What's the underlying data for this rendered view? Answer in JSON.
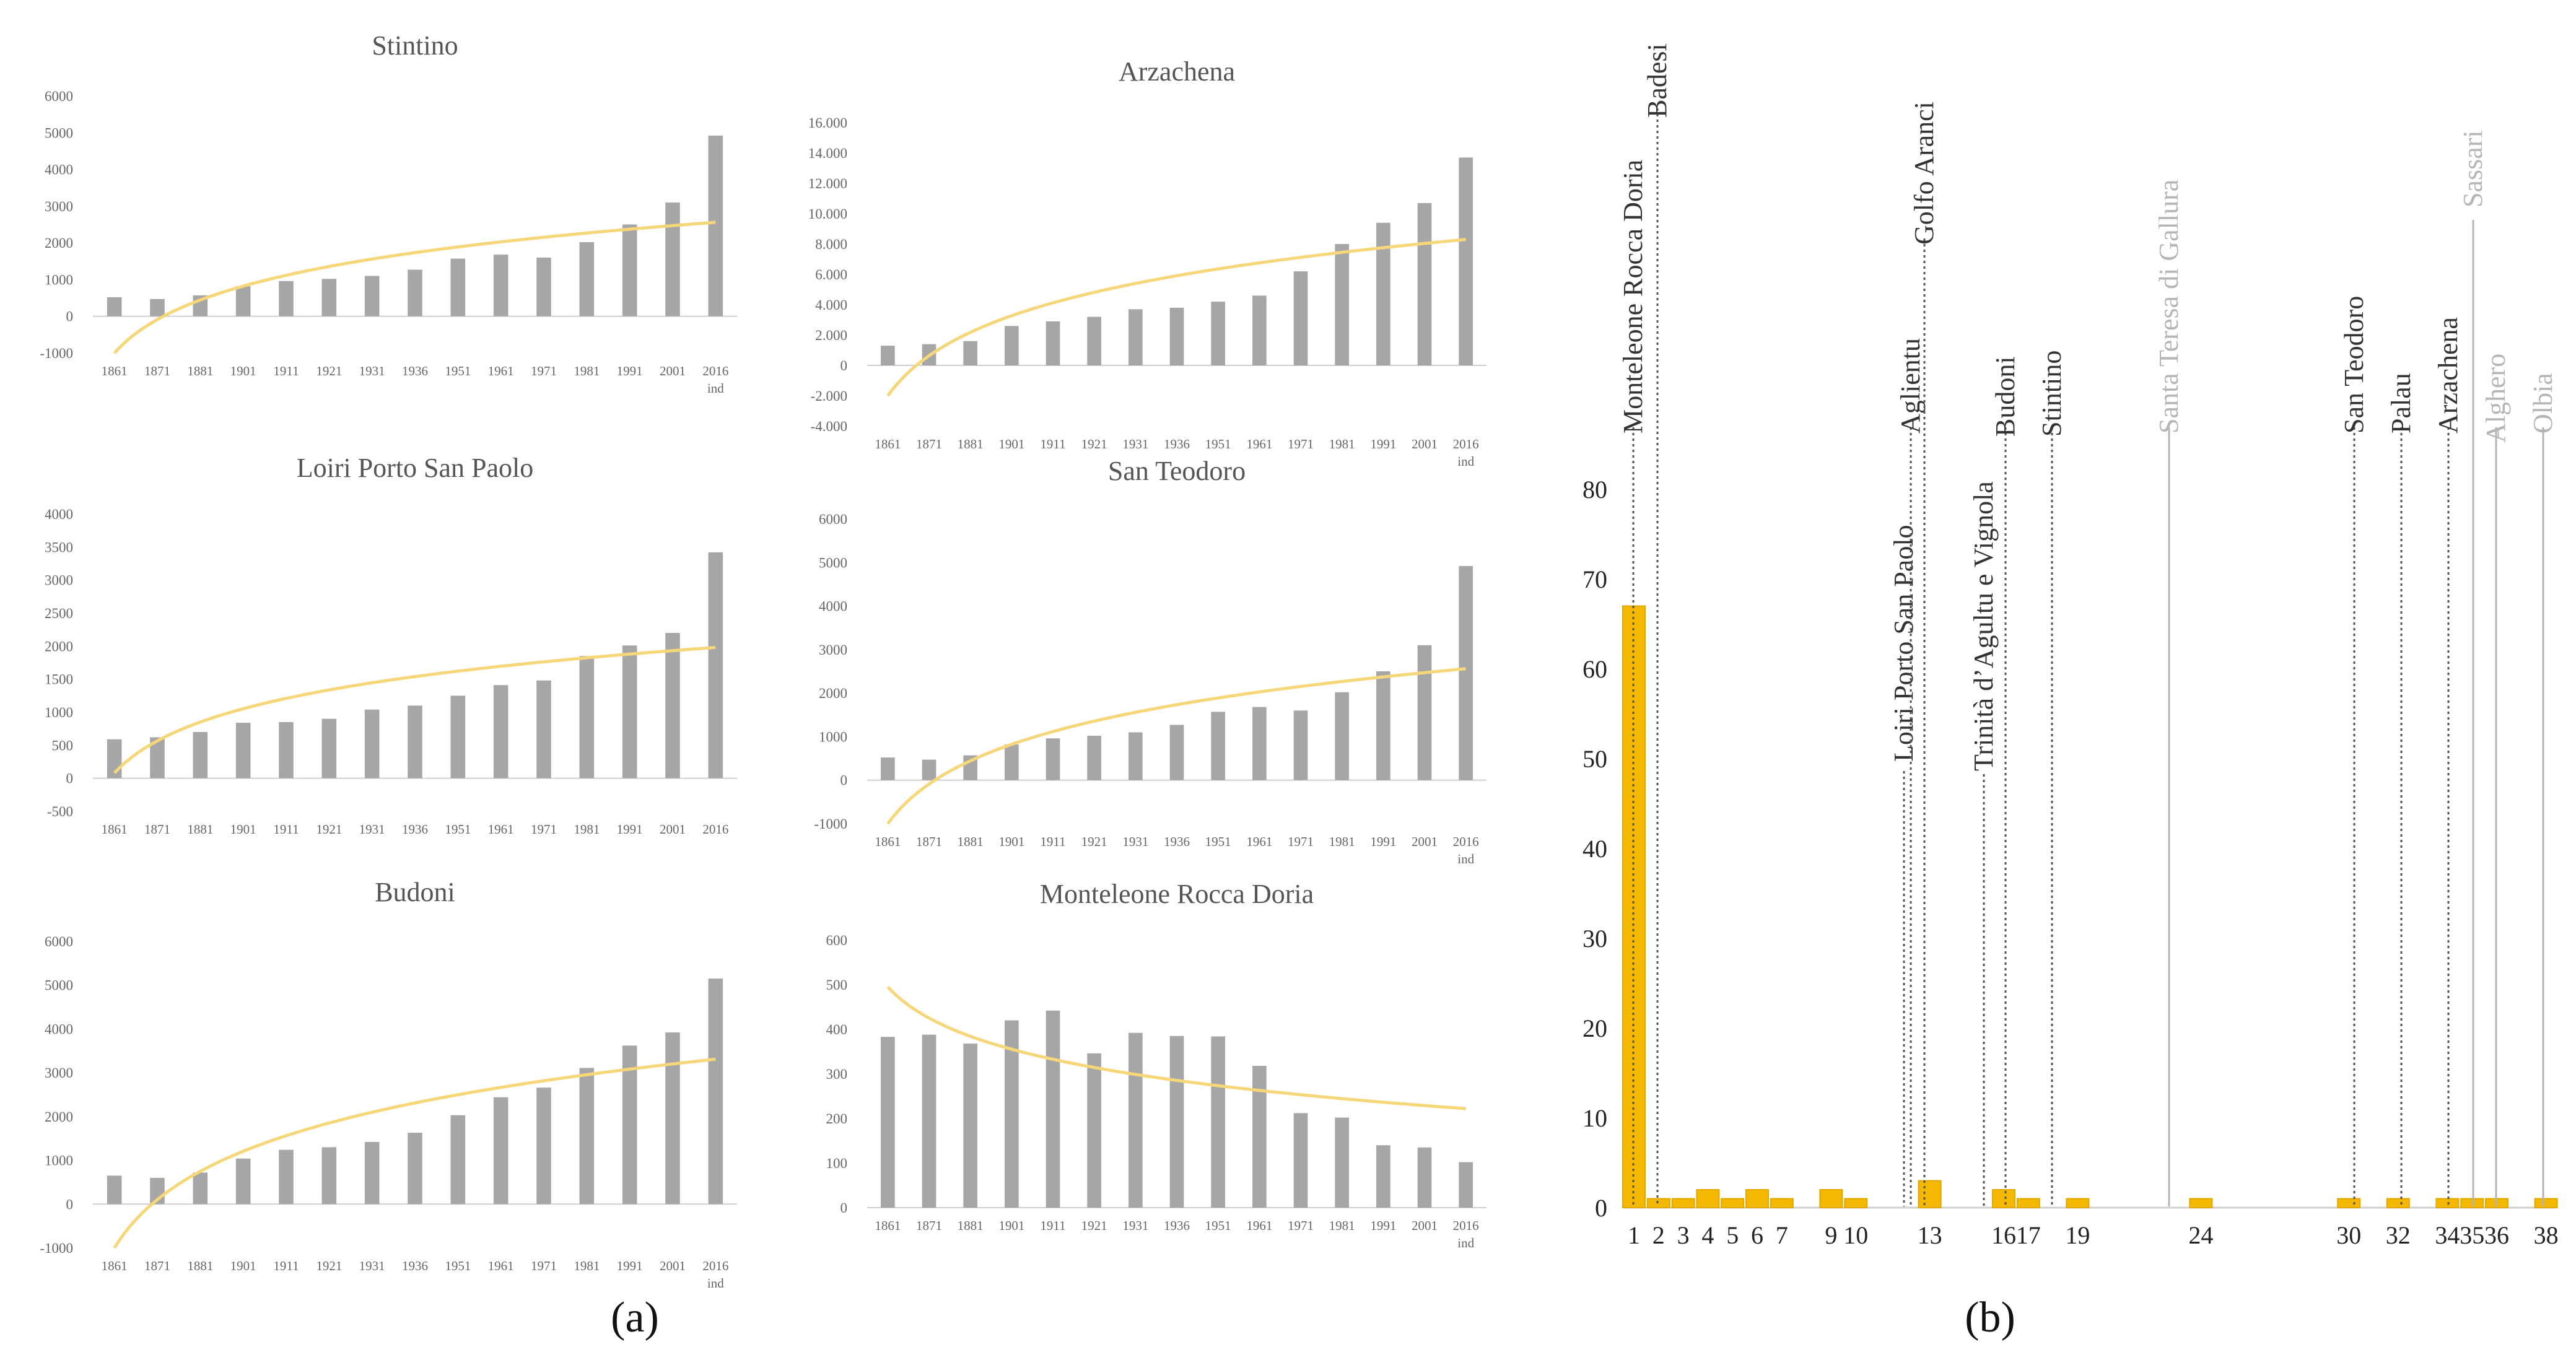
{
  "captions": {
    "a": "(a)",
    "b": "(b)"
  },
  "colors": {
    "bar": "#a6a6a6",
    "trend": "#f5d77a",
    "bar_b": "#f5b800",
    "bar_b_edge": "#e0a800",
    "axis": "#d0d0d0",
    "text": "#666666",
    "faded": "#b5b5b5",
    "dark": "#222222"
  },
  "chart_data": [
    {
      "id": "stintino",
      "type": "bar",
      "title": "Stintino",
      "categories": [
        "1861",
        "1871",
        "1881",
        "1901",
        "1911",
        "1921",
        "1931",
        "1936",
        "1951",
        "1961",
        "1971",
        "1981",
        "1991",
        "2001",
        "2016"
      ],
      "last_sublabel": "ind",
      "values": [
        520,
        470,
        570,
        820,
        960,
        1020,
        1100,
        1270,
        1570,
        1680,
        1600,
        2020,
        2500,
        3100,
        4920
      ],
      "trend": {
        "type": "logarithmic",
        "start": -1000,
        "end": 2560
      },
      "ylim": [
        -1000,
        6000
      ],
      "yticks": [
        -1000,
        0,
        1000,
        2000,
        3000,
        4000,
        5000,
        6000
      ],
      "ytick_labels": [
        "-1000",
        "0",
        "1000",
        "2000",
        "3000",
        "4000",
        "5000",
        "6000"
      ]
    },
    {
      "id": "arzachena",
      "type": "bar",
      "title": "Arzachena",
      "categories": [
        "1861",
        "1871",
        "1881",
        "1901",
        "1911",
        "1921",
        "1931",
        "1936",
        "1951",
        "1961",
        "1971",
        "1981",
        "1991",
        "2001",
        "2016"
      ],
      "last_sublabel": "ind",
      "values": [
        1300,
        1400,
        1600,
        2600,
        2900,
        3200,
        3700,
        3800,
        4200,
        4600,
        6200,
        8000,
        9400,
        10700,
        13700
      ],
      "trend": {
        "type": "logarithmic",
        "start": -2000,
        "end": 8300
      },
      "ylim": [
        -4000,
        16000
      ],
      "yticks": [
        -4000,
        -2000,
        0,
        2000,
        4000,
        6000,
        8000,
        10000,
        12000,
        14000,
        16000
      ],
      "ytick_labels": [
        "-4.000",
        "-2.000",
        "0",
        "2.000",
        "4.000",
        "6.000",
        "8.000",
        "10.000",
        "12.000",
        "14.000",
        "16.000"
      ]
    },
    {
      "id": "loiri",
      "type": "bar",
      "title": "Loiri Porto San Paolo",
      "categories": [
        "1861",
        "1871",
        "1881",
        "1901",
        "1911",
        "1921",
        "1931",
        "1936",
        "1951",
        "1961",
        "1971",
        "1981",
        "1991",
        "2001",
        "2016"
      ],
      "last_sublabel": "",
      "values": [
        590,
        620,
        700,
        840,
        850,
        900,
        1040,
        1100,
        1250,
        1410,
        1480,
        1850,
        2010,
        2200,
        3420
      ],
      "trend": {
        "type": "logarithmic",
        "start": 80,
        "end": 1980
      },
      "ylim": [
        -500,
        4000
      ],
      "yticks": [
        -500,
        0,
        500,
        1000,
        1500,
        2000,
        2500,
        3000,
        3500,
        4000
      ],
      "ytick_labels": [
        "-500",
        "0",
        "500",
        "1000",
        "1500",
        "2000",
        "2500",
        "3000",
        "3500",
        "4000"
      ]
    },
    {
      "id": "santeodoro",
      "type": "bar",
      "title": "San Teodoro",
      "categories": [
        "1861",
        "1871",
        "1881",
        "1901",
        "1911",
        "1921",
        "1931",
        "1936",
        "1951",
        "1961",
        "1971",
        "1981",
        "1991",
        "2001",
        "2016"
      ],
      "last_sublabel": "ind",
      "values": [
        520,
        470,
        570,
        820,
        960,
        1020,
        1100,
        1270,
        1570,
        1680,
        1600,
        2020,
        2500,
        3100,
        4920
      ],
      "trend": {
        "type": "logarithmic",
        "start": -1000,
        "end": 2560
      },
      "ylim": [
        -1000,
        6000
      ],
      "yticks": [
        -1000,
        0,
        1000,
        2000,
        3000,
        4000,
        5000,
        6000
      ],
      "ytick_labels": [
        "-1000",
        "0",
        "1000",
        "2000",
        "3000",
        "4000",
        "5000",
        "6000"
      ]
    },
    {
      "id": "budoni",
      "type": "bar",
      "title": "Budoni",
      "categories": [
        "1861",
        "1871",
        "1881",
        "1901",
        "1911",
        "1921",
        "1931",
        "1936",
        "1951",
        "1961",
        "1971",
        "1981",
        "1991",
        "2001",
        "2016"
      ],
      "last_sublabel": "ind",
      "values": [
        650,
        600,
        720,
        1040,
        1240,
        1300,
        1420,
        1630,
        2030,
        2440,
        2660,
        3110,
        3620,
        3920,
        5150
      ],
      "trend": {
        "type": "logarithmic",
        "start": -1000,
        "end": 3310
      },
      "ylim": [
        -1000,
        6000
      ],
      "yticks": [
        -1000,
        0,
        1000,
        2000,
        3000,
        4000,
        5000,
        6000
      ],
      "ytick_labels": [
        "-1000",
        "0",
        "1000",
        "2000",
        "3000",
        "4000",
        "5000",
        "6000"
      ]
    },
    {
      "id": "monteleone",
      "type": "bar",
      "title": "Monteleone Rocca Doria",
      "categories": [
        "1861",
        "1871",
        "1881",
        "1901",
        "1911",
        "1921",
        "1931",
        "1936",
        "1951",
        "1961",
        "1971",
        "1981",
        "1991",
        "2001",
        "2016"
      ],
      "last_sublabel": "ind",
      "values": [
        383,
        388,
        368,
        420,
        442,
        346,
        392,
        385,
        384,
        318,
        212,
        202,
        140,
        135,
        102
      ],
      "trend": {
        "type": "logarithmic",
        "start": 495,
        "end": 222
      },
      "ylim": [
        0,
        600
      ],
      "yticks": [
        0,
        100,
        200,
        300,
        400,
        500,
        600
      ],
      "ytick_labels": [
        "0",
        "100",
        "200",
        "300",
        "400",
        "500",
        "600"
      ]
    },
    {
      "id": "panel_b",
      "type": "bar",
      "title": "",
      "x": [
        1,
        2,
        3,
        4,
        5,
        6,
        7,
        9,
        10,
        13,
        16,
        17,
        19,
        24,
        30,
        32,
        34,
        35,
        36,
        38
      ],
      "values": [
        67,
        1,
        1,
        2,
        1,
        2,
        1,
        2,
        1,
        3,
        2,
        1,
        1,
        1,
        1,
        1,
        1,
        1,
        1,
        1
      ],
      "ylim": [
        0,
        80
      ],
      "yticks": [
        0,
        10,
        20,
        30,
        40,
        50,
        60,
        70,
        80
      ],
      "annotations": [
        {
          "label": "Monteleone Rocca Doria",
          "x": 1,
          "style": "dotted",
          "faded": false
        },
        {
          "label": "Badesi",
          "x": 2,
          "style": "dotted",
          "faded": false
        },
        {
          "label": "Loiri Porto San Paolo",
          "x": 13,
          "style": "dotted",
          "faded": false
        },
        {
          "label": "Aglientu",
          "x": 13,
          "style": "dotted",
          "faded": false
        },
        {
          "label": "Golfo Aranci",
          "x": 13,
          "style": "dotted",
          "faded": false
        },
        {
          "label": "Trinità d’Agultu e Vignola",
          "x": 16,
          "style": "dotted",
          "faded": false
        },
        {
          "label": "Budoni",
          "x": 17,
          "style": "dotted",
          "faded": false
        },
        {
          "label": "Stintino",
          "x": 19,
          "style": "dotted",
          "faded": false
        },
        {
          "label": "Santa Teresa di Gallura",
          "x": 24,
          "style": "solid",
          "faded": true
        },
        {
          "label": "San Teodoro",
          "x": 30,
          "style": "dotted",
          "faded": false
        },
        {
          "label": "Palau",
          "x": 32,
          "style": "dotted",
          "faded": false
        },
        {
          "label": "Arzachena",
          "x": 34,
          "style": "dotted",
          "faded": false
        },
        {
          "label": "Sassari",
          "x": 35,
          "style": "solid",
          "faded": true
        },
        {
          "label": "Alghero",
          "x": 36,
          "style": "solid",
          "faded": true
        },
        {
          "label": "Olbia",
          "x": 38,
          "style": "solid",
          "faded": true
        }
      ]
    }
  ]
}
